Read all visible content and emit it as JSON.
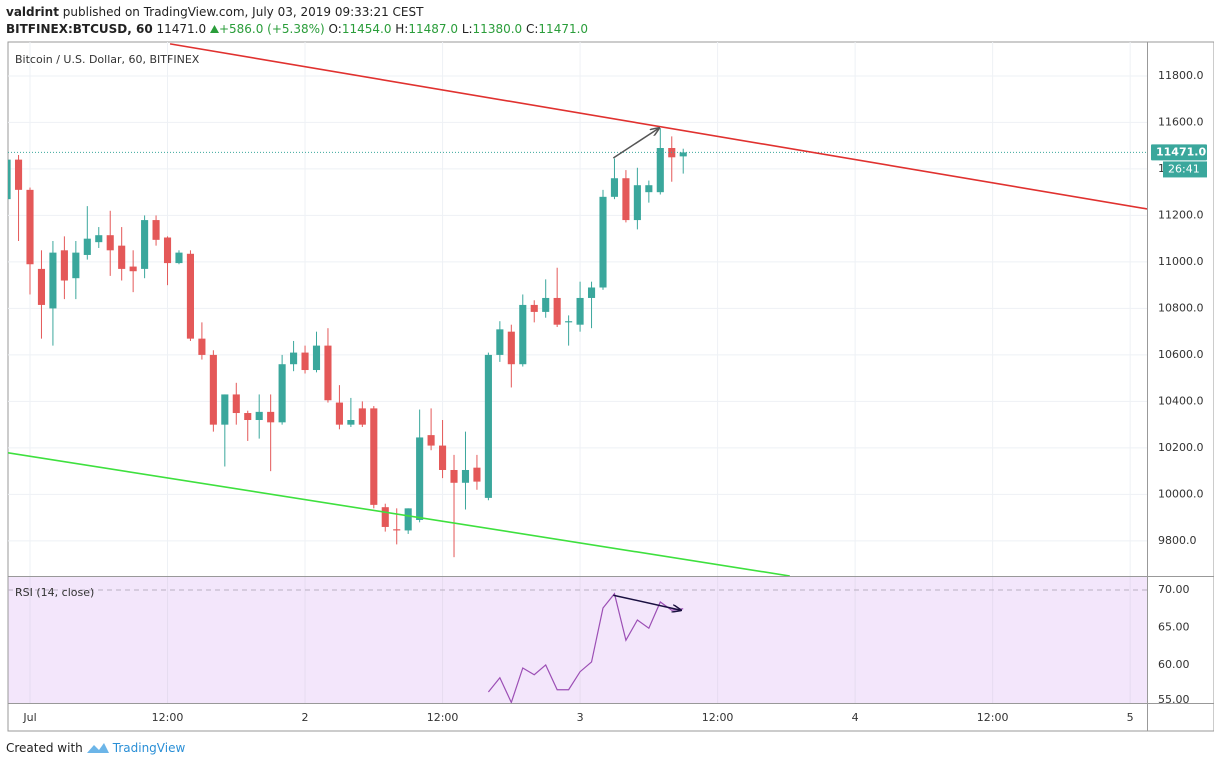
{
  "header": {
    "author": "valdrint",
    "published": "published on TradingView.com, July 03, 2019 09:33:21 CEST",
    "symbol": "BITFINEX:BTCUSD, 60",
    "last": "11471.0",
    "change": "+586.0 (+5.38%)",
    "o_label": "O:",
    "o": "11454.0",
    "h_label": "H:",
    "h": "11487.0",
    "l_label": "L:",
    "l": "11380.0",
    "c_label": "C:",
    "c": "11471.0"
  },
  "chart_data": {
    "type": "candlestick",
    "title": "Bitcoin / U.S. Dollar, 60, BITFINEX",
    "x": [
      -2,
      -1,
      0,
      1,
      2,
      3,
      4,
      5,
      6,
      7,
      8,
      9,
      10,
      11,
      12,
      13,
      14,
      15,
      16,
      17,
      18,
      19,
      20,
      21,
      22,
      23,
      24,
      25,
      26,
      27,
      28,
      29,
      30,
      31,
      32,
      33,
      34,
      35,
      36,
      37,
      38,
      39,
      40,
      41,
      42,
      43,
      44,
      45,
      46,
      47,
      48,
      49,
      50,
      51,
      52,
      53,
      54,
      55,
      56,
      57
    ],
    "open": [
      11270,
      11440,
      11310,
      10970,
      10800,
      11050,
      10930,
      11030,
      11085,
      11115,
      11070,
      10980,
      10970,
      11180,
      11105,
      10995,
      11035,
      10670,
      10600,
      10300,
      10430,
      10350,
      10320,
      10355,
      10310,
      10560,
      10610,
      10535,
      10640,
      10395,
      10300,
      10370,
      10370,
      9945,
      9850,
      9845,
      9890,
      10255,
      10210,
      10105,
      10050,
      10115,
      9985,
      10600,
      10700,
      10560,
      10815,
      10785,
      10845,
      10740,
      10730,
      10845,
      10890,
      11280,
      11360,
      11180,
      11300,
      11300,
      11490,
      11454
    ],
    "high": [
      11460,
      11460,
      11320,
      11050,
      11090,
      11110,
      11090,
      11240,
      11150,
      11220,
      11150,
      11050,
      11200,
      11200,
      11110,
      11050,
      11050,
      10740,
      10620,
      10430,
      10480,
      10360,
      10430,
      10430,
      10600,
      10660,
      10640,
      10700,
      10715,
      10470,
      10415,
      10400,
      10380,
      9960,
      9940,
      9940,
      10365,
      10370,
      10320,
      10170,
      10270,
      10170,
      10610,
      10745,
      10730,
      10860,
      10835,
      10925,
      10975,
      10770,
      10915,
      10915,
      11310,
      11445,
      11395,
      11405,
      11350,
      11575,
      11540,
      11487
    ],
    "low": [
      11230,
      11090,
      10860,
      10670,
      10640,
      10840,
      10840,
      11010,
      11060,
      10940,
      10920,
      10870,
      10930,
      11070,
      10900,
      10990,
      10660,
      10580,
      10270,
      10120,
      10300,
      10230,
      10240,
      10100,
      10300,
      10530,
      10520,
      10525,
      10395,
      10280,
      10290,
      10290,
      9940,
      9840,
      9785,
      9830,
      9880,
      10190,
      10070,
      9730,
      9935,
      10020,
      9975,
      10570,
      10460,
      10550,
      10740,
      10760,
      10720,
      10640,
      10700,
      10715,
      10880,
      11270,
      11170,
      11140,
      11255,
      11290,
      11345,
      11380
    ],
    "close": [
      11440,
      11310,
      10990,
      10815,
      11040,
      10920,
      11040,
      11100,
      11115,
      11050,
      10970,
      10960,
      11180,
      11095,
      10995,
      11040,
      10670,
      10600,
      10300,
      10430,
      10350,
      10320,
      10355,
      10310,
      10560,
      10610,
      10535,
      10640,
      10405,
      10300,
      10320,
      10300,
      9955,
      9860,
      9845,
      9940,
      10245,
      10210,
      10105,
      10050,
      10105,
      10055,
      10600,
      10710,
      10560,
      10815,
      10785,
      10845,
      10730,
      10745,
      10845,
      10890,
      11280,
      11360,
      11180,
      11330,
      11330,
      11490,
      11450,
      11471
    ],
    "up_color": "#3aa79c",
    "down_color": "#e45858",
    "xlim": [
      -1.92,
      97.47
    ],
    "xticks": [
      {
        "value": 0,
        "label": "Jul"
      },
      {
        "value": 12,
        "label": "12:00"
      },
      {
        "value": 24,
        "label": "2"
      },
      {
        "value": 36,
        "label": "12:00"
      },
      {
        "value": 48,
        "label": "3"
      },
      {
        "value": 60,
        "label": "12:00"
      },
      {
        "value": 72,
        "label": "4"
      },
      {
        "value": 84,
        "label": "12:00"
      },
      {
        "value": 96,
        "label": "5"
      }
    ],
    "ylim": [
      9649,
      11946
    ],
    "yticks": [
      {
        "value": 9800,
        "label": "9800.0"
      },
      {
        "value": 10000,
        "label": "10000.0"
      },
      {
        "value": 10200,
        "label": "10200.0"
      },
      {
        "value": 10400,
        "label": "10400.0"
      },
      {
        "value": 10600,
        "label": "10600.0"
      },
      {
        "value": 10800,
        "label": "10800.0"
      },
      {
        "value": 11000,
        "label": "11000.0"
      },
      {
        "value": 11200,
        "label": "11200.0"
      },
      {
        "value": 11400,
        "label": "11400.0"
      },
      {
        "value": 11600,
        "label": "11600.0"
      },
      {
        "value": 11800,
        "label": "11800.0"
      }
    ],
    "grid": true,
    "last_price": {
      "value": 11471,
      "label": "11471.0",
      "color": "#3aa79c"
    },
    "countdown": "26:41",
    "trendlines": [
      {
        "pane": "price",
        "color": "#e0312f",
        "x": [
          12.22,
          97.47
        ],
        "y": [
          11938,
          11228
        ]
      },
      {
        "pane": "price",
        "color": "#3ee03e",
        "x": [
          -1.92,
          66.3
        ],
        "y": [
          10179,
          9649
        ]
      },
      {
        "pane": "price",
        "color": "#555555",
        "arrow": true,
        "x": [
          50.9,
          54.9
        ],
        "y": [
          11447,
          11576
        ]
      },
      {
        "pane": "rsi",
        "color": "#1a1040",
        "arrow": true,
        "x": [
          50.9,
          56.8
        ],
        "y": [
          69.3,
          67.3
        ]
      }
    ],
    "rsi": {
      "title": "RSI (14, close)",
      "color": "#9c4fb5",
      "values": [
        null,
        null,
        null,
        null,
        null,
        null,
        null,
        null,
        null,
        null,
        null,
        null,
        null,
        null,
        null,
        null,
        null,
        null,
        null,
        null,
        null,
        null,
        null,
        null,
        null,
        null,
        null,
        null,
        null,
        null,
        null,
        null,
        null,
        null,
        null,
        null,
        null,
        null,
        null,
        null,
        null,
        null,
        56.4,
        58.3,
        55,
        59.6,
        58.7,
        60,
        56.7,
        56.7,
        59.1,
        60.4,
        67.6,
        69.5,
        63.3,
        66,
        64.9,
        68.4,
        67.3,
        67.5
      ],
      "ylim": [
        54.93,
        71.73
      ],
      "yticks": [
        {
          "value": 55,
          "label": "55.00"
        },
        {
          "value": 60,
          "label": "60.00"
        },
        {
          "value": 65,
          "label": "65.00"
        },
        {
          "value": 70,
          "label": "70.00"
        }
      ]
    }
  },
  "footer": {
    "text": "Created with",
    "brand": "TradingView"
  }
}
